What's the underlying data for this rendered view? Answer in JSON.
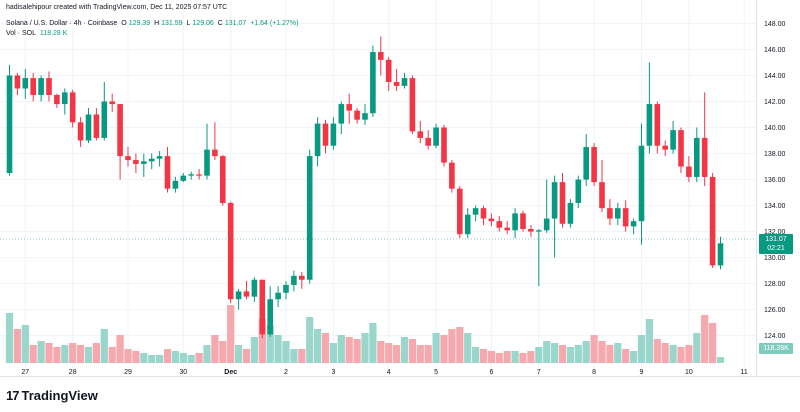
{
  "attribution": "hadisalehipour created with TradingView.com, Dec 11, 2025 07:57 UTC",
  "legend": {
    "symbol": "Solana / U.S. Dollar · 4h · Coinbase",
    "open_label": "O",
    "open": "129.39",
    "high_label": "H",
    "high": "131.59",
    "low_label": "L",
    "low": "129.06",
    "close_label": "C",
    "close": "131.07",
    "change": "+1.64 (+1.27%)",
    "vol_label": "Vol · SOL",
    "vol_value": "118.28 K"
  },
  "price_tag": {
    "price": "131.07",
    "countdown": "02:21"
  },
  "volume_tag": "118.28K",
  "logo": {
    "mark": "17",
    "text": "TradingView"
  },
  "colors": {
    "up": "#089981",
    "down": "#f23645",
    "vol_up": "#9ad6cc",
    "vol_down": "#f5a8ae"
  },
  "chart_data": {
    "type": "candlestick",
    "title": "Solana / U.S. Dollar · 4h · Coinbase",
    "y_axis": {
      "range": [
        120.9,
        149.8
      ],
      "ticks": [
        124,
        126,
        128,
        130,
        132,
        134,
        136,
        138,
        140,
        142,
        144,
        146,
        148
      ],
      "side": "right"
    },
    "x_axis_labels": [
      {
        "label": "27",
        "index": 2
      },
      {
        "label": "28",
        "index": 8
      },
      {
        "label": "29",
        "index": 15
      },
      {
        "label": "30",
        "index": 22
      },
      {
        "label": "Dec",
        "index": 28
      },
      {
        "label": "2",
        "index": 35
      },
      {
        "label": "3",
        "index": 41
      },
      {
        "label": "4",
        "index": 48
      },
      {
        "label": "5",
        "index": 54
      },
      {
        "label": "6",
        "index": 61
      },
      {
        "label": "7",
        "index": 67
      },
      {
        "label": "8",
        "index": 74
      },
      {
        "label": "9",
        "index": 80
      },
      {
        "label": "10",
        "index": 86
      },
      {
        "label": "11",
        "index": 93
      }
    ],
    "last_price": 131.07,
    "candles": [
      {
        "o": 136.5,
        "h": 144.8,
        "l": 136.3,
        "c": 144.0,
        "v": 25
      },
      {
        "o": 144.0,
        "h": 144.2,
        "l": 142.5,
        "c": 143.0,
        "v": 17
      },
      {
        "o": 143.0,
        "h": 144.5,
        "l": 142.2,
        "c": 143.8,
        "v": 19
      },
      {
        "o": 143.8,
        "h": 144.2,
        "l": 142.0,
        "c": 142.5,
        "v": 9
      },
      {
        "o": 142.5,
        "h": 144.0,
        "l": 142.0,
        "c": 143.8,
        "v": 11
      },
      {
        "o": 143.8,
        "h": 144.3,
        "l": 142.0,
        "c": 142.5,
        "v": 10
      },
      {
        "o": 142.5,
        "h": 142.6,
        "l": 141.5,
        "c": 141.8,
        "v": 8
      },
      {
        "o": 141.8,
        "h": 143.0,
        "l": 141.0,
        "c": 142.7,
        "v": 9
      },
      {
        "o": 142.7,
        "h": 142.9,
        "l": 140.0,
        "c": 140.4,
        "v": 10
      },
      {
        "o": 140.4,
        "h": 140.8,
        "l": 138.5,
        "c": 139.0,
        "v": 9
      },
      {
        "o": 139.0,
        "h": 141.5,
        "l": 138.8,
        "c": 141.0,
        "v": 8
      },
      {
        "o": 141.0,
        "h": 141.5,
        "l": 139.0,
        "c": 139.2,
        "v": 10
      },
      {
        "o": 139.2,
        "h": 143.5,
        "l": 139.0,
        "c": 142.0,
        "v": 17
      },
      {
        "o": 142.0,
        "h": 142.6,
        "l": 141.2,
        "c": 141.8,
        "v": 8
      },
      {
        "o": 141.8,
        "h": 141.8,
        "l": 136.0,
        "c": 137.8,
        "v": 14
      },
      {
        "o": 137.8,
        "h": 138.5,
        "l": 137.0,
        "c": 137.5,
        "v": 7
      },
      {
        "o": 137.5,
        "h": 138.0,
        "l": 136.5,
        "c": 137.2,
        "v": 6
      },
      {
        "o": 137.2,
        "h": 138.0,
        "l": 136.2,
        "c": 137.4,
        "v": 5
      },
      {
        "o": 137.4,
        "h": 138.0,
        "l": 136.8,
        "c": 137.6,
        "v": 4
      },
      {
        "o": 137.6,
        "h": 138.2,
        "l": 137.0,
        "c": 137.8,
        "v": 4
      },
      {
        "o": 137.8,
        "h": 138.5,
        "l": 135.0,
        "c": 135.3,
        "v": 7
      },
      {
        "o": 135.3,
        "h": 136.2,
        "l": 135.0,
        "c": 135.9,
        "v": 6
      },
      {
        "o": 135.9,
        "h": 136.5,
        "l": 135.8,
        "c": 136.3,
        "v": 5
      },
      {
        "o": 136.3,
        "h": 136.6,
        "l": 136.0,
        "c": 136.4,
        "v": 4
      },
      {
        "o": 136.4,
        "h": 136.8,
        "l": 136.0,
        "c": 136.3,
        "v": 5
      },
      {
        "o": 136.3,
        "h": 140.3,
        "l": 136.0,
        "c": 138.3,
        "v": 9
      },
      {
        "o": 138.3,
        "h": 140.4,
        "l": 137.5,
        "c": 137.8,
        "v": 14
      },
      {
        "o": 137.8,
        "h": 137.9,
        "l": 134.0,
        "c": 134.2,
        "v": 11
      },
      {
        "o": 134.2,
        "h": 134.3,
        "l": 126.5,
        "c": 126.8,
        "v": 29
      },
      {
        "o": 126.8,
        "h": 127.6,
        "l": 126.0,
        "c": 127.4,
        "v": 9
      },
      {
        "o": 127.4,
        "h": 128.2,
        "l": 126.8,
        "c": 127.0,
        "v": 7
      },
      {
        "o": 127.0,
        "h": 128.5,
        "l": 126.6,
        "c": 128.3,
        "v": 13
      },
      {
        "o": 128.3,
        "h": 128.3,
        "l": 123.8,
        "c": 124.1,
        "v": 22
      },
      {
        "o": 124.1,
        "h": 127.8,
        "l": 123.9,
        "c": 126.8,
        "v": 19
      },
      {
        "o": 126.8,
        "h": 127.8,
        "l": 126.2,
        "c": 127.3,
        "v": 14
      },
      {
        "o": 127.3,
        "h": 128.2,
        "l": 126.8,
        "c": 127.9,
        "v": 11
      },
      {
        "o": 127.9,
        "h": 129.0,
        "l": 127.4,
        "c": 128.6,
        "v": 7
      },
      {
        "o": 128.6,
        "h": 128.9,
        "l": 127.6,
        "c": 128.3,
        "v": 7
      },
      {
        "o": 128.3,
        "h": 138.3,
        "l": 128.0,
        "c": 137.8,
        "v": 23
      },
      {
        "o": 137.8,
        "h": 140.8,
        "l": 137.0,
        "c": 140.3,
        "v": 17
      },
      {
        "o": 140.3,
        "h": 140.6,
        "l": 138.0,
        "c": 138.6,
        "v": 15
      },
      {
        "o": 138.6,
        "h": 140.8,
        "l": 138.3,
        "c": 140.3,
        "v": 10
      },
      {
        "o": 140.3,
        "h": 142.0,
        "l": 139.5,
        "c": 141.8,
        "v": 14
      },
      {
        "o": 141.8,
        "h": 142.6,
        "l": 140.3,
        "c": 141.3,
        "v": 13
      },
      {
        "o": 141.3,
        "h": 141.5,
        "l": 140.3,
        "c": 140.6,
        "v": 12
      },
      {
        "o": 140.6,
        "h": 141.8,
        "l": 140.2,
        "c": 141.1,
        "v": 15
      },
      {
        "o": 141.1,
        "h": 146.3,
        "l": 140.8,
        "c": 145.8,
        "v": 20
      },
      {
        "o": 145.8,
        "h": 147.0,
        "l": 144.0,
        "c": 145.2,
        "v": 11
      },
      {
        "o": 145.2,
        "h": 145.4,
        "l": 142.8,
        "c": 143.5,
        "v": 10
      },
      {
        "o": 143.5,
        "h": 144.5,
        "l": 142.8,
        "c": 143.2,
        "v": 9
      },
      {
        "o": 143.2,
        "h": 144.2,
        "l": 143.0,
        "c": 143.8,
        "v": 13
      },
      {
        "o": 143.8,
        "h": 144.0,
        "l": 139.5,
        "c": 139.7,
        "v": 12
      },
      {
        "o": 139.7,
        "h": 140.5,
        "l": 138.8,
        "c": 139.2,
        "v": 9
      },
      {
        "o": 139.2,
        "h": 139.8,
        "l": 138.3,
        "c": 138.6,
        "v": 9
      },
      {
        "o": 138.6,
        "h": 140.3,
        "l": 138.4,
        "c": 140.0,
        "v": 15
      },
      {
        "o": 140.0,
        "h": 140.2,
        "l": 137.0,
        "c": 137.3,
        "v": 14
      },
      {
        "o": 137.3,
        "h": 137.5,
        "l": 135.0,
        "c": 135.3,
        "v": 17
      },
      {
        "o": 135.3,
        "h": 135.5,
        "l": 131.5,
        "c": 131.8,
        "v": 18
      },
      {
        "o": 131.8,
        "h": 133.8,
        "l": 131.5,
        "c": 133.3,
        "v": 15
      },
      {
        "o": 133.3,
        "h": 134.0,
        "l": 132.8,
        "c": 133.8,
        "v": 8
      },
      {
        "o": 133.8,
        "h": 134.0,
        "l": 132.5,
        "c": 133.0,
        "v": 7
      },
      {
        "o": 133.0,
        "h": 133.4,
        "l": 132.4,
        "c": 132.8,
        "v": 6
      },
      {
        "o": 132.8,
        "h": 133.2,
        "l": 132.0,
        "c": 132.3,
        "v": 5
      },
      {
        "o": 132.3,
        "h": 132.8,
        "l": 131.8,
        "c": 132.1,
        "v": 6
      },
      {
        "o": 132.1,
        "h": 133.8,
        "l": 131.5,
        "c": 133.4,
        "v": 6
      },
      {
        "o": 133.4,
        "h": 133.6,
        "l": 132.0,
        "c": 132.2,
        "v": 5
      },
      {
        "o": 132.2,
        "h": 132.5,
        "l": 131.6,
        "c": 132.0,
        "v": 6
      },
      {
        "o": 132.0,
        "h": 132.2,
        "l": 127.8,
        "c": 132.1,
        "v": 8
      },
      {
        "o": 132.1,
        "h": 136.0,
        "l": 131.9,
        "c": 133.0,
        "v": 11
      },
      {
        "o": 133.0,
        "h": 136.3,
        "l": 130.0,
        "c": 135.8,
        "v": 10
      },
      {
        "o": 135.8,
        "h": 136.5,
        "l": 132.3,
        "c": 132.6,
        "v": 9
      },
      {
        "o": 132.6,
        "h": 134.5,
        "l": 132.3,
        "c": 134.2,
        "v": 8
      },
      {
        "o": 134.2,
        "h": 136.3,
        "l": 133.8,
        "c": 136.0,
        "v": 9
      },
      {
        "o": 136.0,
        "h": 139.5,
        "l": 135.5,
        "c": 138.5,
        "v": 11
      },
      {
        "o": 138.5,
        "h": 138.8,
        "l": 135.5,
        "c": 135.8,
        "v": 14
      },
      {
        "o": 135.8,
        "h": 137.5,
        "l": 133.5,
        "c": 133.8,
        "v": 11
      },
      {
        "o": 133.8,
        "h": 134.5,
        "l": 132.5,
        "c": 133.0,
        "v": 9
      },
      {
        "o": 133.0,
        "h": 134.2,
        "l": 132.5,
        "c": 133.8,
        "v": 10
      },
      {
        "o": 133.8,
        "h": 134.4,
        "l": 132.0,
        "c": 132.4,
        "v": 7
      },
      {
        "o": 132.4,
        "h": 133.0,
        "l": 131.8,
        "c": 132.8,
        "v": 6
      },
      {
        "o": 132.8,
        "h": 140.3,
        "l": 131.0,
        "c": 138.6,
        "v": 14
      },
      {
        "o": 138.6,
        "h": 145.0,
        "l": 138.0,
        "c": 141.8,
        "v": 22
      },
      {
        "o": 141.8,
        "h": 142.0,
        "l": 138.0,
        "c": 138.6,
        "v": 12
      },
      {
        "o": 138.6,
        "h": 139.0,
        "l": 137.8,
        "c": 138.3,
        "v": 10
      },
      {
        "o": 138.3,
        "h": 140.5,
        "l": 138.0,
        "c": 139.8,
        "v": 9
      },
      {
        "o": 139.8,
        "h": 140.0,
        "l": 136.5,
        "c": 137.0,
        "v": 8
      },
      {
        "o": 137.0,
        "h": 137.8,
        "l": 135.8,
        "c": 136.2,
        "v": 9
      },
      {
        "o": 136.2,
        "h": 140.0,
        "l": 135.8,
        "c": 139.2,
        "v": 15
      },
      {
        "o": 139.2,
        "h": 142.7,
        "l": 135.5,
        "c": 136.2,
        "v": 24
      },
      {
        "o": 136.2,
        "h": 136.5,
        "l": 129.2,
        "c": 129.4,
        "v": 20
      },
      {
        "o": 129.4,
        "h": 131.6,
        "l": 129.1,
        "c": 131.1,
        "v": 3
      }
    ]
  }
}
